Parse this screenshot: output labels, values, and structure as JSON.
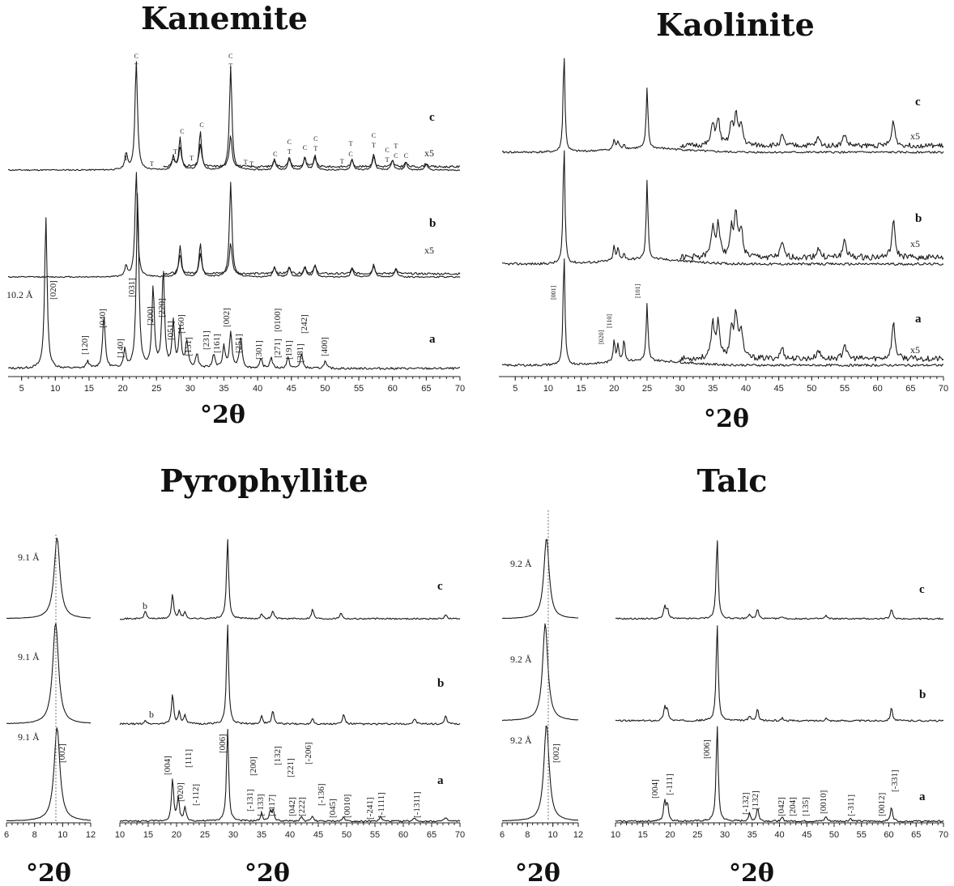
{
  "chart_data": [
    {
      "type": "line",
      "title": "Kanemite",
      "xlabel": "°2θ",
      "xlim": [
        3,
        70
      ],
      "ticks": [
        5,
        10,
        15,
        20,
        25,
        30,
        35,
        40,
        45,
        50,
        55,
        60,
        65,
        70
      ],
      "traces": [
        {
          "name": "c",
          "mult": "x5",
          "peaks": [
            [
              20.5,
              0.15
            ],
            [
              22.0,
              1.0
            ],
            [
              27.5,
              0.12
            ],
            [
              28.5,
              0.3
            ],
            [
              31.5,
              0.35
            ],
            [
              36.0,
              0.95
            ],
            [
              42.5,
              0.1
            ],
            [
              44.7,
              0.12
            ],
            [
              47.0,
              0.12
            ],
            [
              48.5,
              0.14
            ],
            [
              54.0,
              0.1
            ],
            [
              57.2,
              0.15
            ],
            [
              60.0,
              0.09
            ],
            [
              62.0,
              0.07
            ],
            [
              65.0,
              0.06
            ]
          ]
        },
        {
          "name": "b",
          "mult": "x5",
          "peaks": [
            [
              20.5,
              0.1
            ],
            [
              22.0,
              1.0
            ],
            [
              28.5,
              0.3
            ],
            [
              31.5,
              0.32
            ],
            [
              36.0,
              0.9
            ],
            [
              42.5,
              0.1
            ],
            [
              44.7,
              0.1
            ],
            [
              47.0,
              0.1
            ],
            [
              48.5,
              0.12
            ],
            [
              54.0,
              0.08
            ],
            [
              57.2,
              0.12
            ],
            [
              60.5,
              0.08
            ]
          ]
        },
        {
          "name": "a",
          "mult": "",
          "peaks": [
            [
              8.6,
              0.85
            ],
            [
              14.8,
              0.04
            ],
            [
              17.2,
              0.3
            ],
            [
              20.3,
              0.1
            ],
            [
              22.2,
              1.0
            ],
            [
              24.5,
              0.45
            ],
            [
              26.0,
              0.55
            ],
            [
              27.5,
              0.25
            ],
            [
              28.5,
              0.22
            ],
            [
              29.5,
              0.15
            ],
            [
              31.0,
              0.08
            ],
            [
              33.5,
              0.08
            ],
            [
              35.0,
              0.12
            ],
            [
              36.0,
              0.2
            ],
            [
              37.5,
              0.18
            ],
            [
              40.5,
              0.05
            ],
            [
              42.0,
              0.06
            ],
            [
              44.5,
              0.06
            ],
            [
              46.5,
              0.08
            ],
            [
              50.0,
              0.04
            ]
          ]
        }
      ],
      "annotations": {
        "spacing": "10.2  Å",
        "hkl": [
          "[020]",
          "[120]",
          "[040]",
          "[140]",
          "[031]",
          "[200]",
          "[220]",
          "[051]",
          "[160]",
          "[151]",
          "[231]",
          "[161]",
          "[002]",
          "[251]",
          "[301]",
          "[271]",
          "[0100]",
          "[191]",
          "[281]",
          "[242]",
          "[400]"
        ],
        "phase_marks": [
          "C",
          "T"
        ]
      }
    },
    {
      "type": "line",
      "title": "Kaolinite",
      "xlabel": "°2θ",
      "xlim": [
        3,
        70
      ],
      "ticks": [
        5,
        10,
        15,
        20,
        25,
        30,
        35,
        40,
        45,
        50,
        55,
        60,
        65,
        70
      ],
      "traces": [
        {
          "name": "c",
          "mult": "x5",
          "peaks": [
            [
              12.4,
              1.0
            ],
            [
              20.0,
              0.1
            ],
            [
              20.6,
              0.08
            ],
            [
              21.5,
              0.05
            ],
            [
              25.0,
              0.6
            ],
            [
              35.0,
              0.22
            ],
            [
              35.8,
              0.25
            ],
            [
              37.8,
              0.2
            ],
            [
              38.5,
              0.3
            ],
            [
              39.3,
              0.2
            ],
            [
              45.5,
              0.1
            ],
            [
              51.0,
              0.08
            ],
            [
              55.0,
              0.12
            ],
            [
              62.4,
              0.25
            ]
          ]
        },
        {
          "name": "b",
          "mult": "x5",
          "peaks": [
            [
              12.4,
              1.0
            ],
            [
              20.0,
              0.12
            ],
            [
              20.6,
              0.1
            ],
            [
              21.5,
              0.06
            ],
            [
              25.0,
              0.65
            ],
            [
              35.0,
              0.25
            ],
            [
              35.8,
              0.28
            ],
            [
              37.8,
              0.22
            ],
            [
              38.5,
              0.35
            ],
            [
              39.3,
              0.22
            ],
            [
              45.5,
              0.12
            ],
            [
              51.0,
              0.08
            ],
            [
              55.0,
              0.15
            ],
            [
              62.4,
              0.3
            ]
          ]
        },
        {
          "name": "a",
          "mult": "x5",
          "peaks": [
            [
              12.4,
              1.0
            ],
            [
              20.0,
              0.2
            ],
            [
              20.6,
              0.15
            ],
            [
              21.5,
              0.2
            ],
            [
              25.0,
              0.5
            ],
            [
              35.0,
              0.3
            ],
            [
              35.8,
              0.32
            ],
            [
              37.8,
              0.25
            ],
            [
              38.5,
              0.38
            ],
            [
              39.3,
              0.25
            ],
            [
              45.5,
              0.1
            ],
            [
              51.0,
              0.08
            ],
            [
              55.0,
              0.14
            ],
            [
              62.4,
              0.32
            ]
          ]
        }
      ],
      "annotations": {
        "hkl": [
          "[001]",
          "[020]",
          "[110]",
          "[101]"
        ]
      }
    },
    {
      "type": "line",
      "title": "Pyrophyllite",
      "xlabel": "°2θ",
      "xlim_left": [
        6,
        12
      ],
      "xlim_right": [
        10,
        70
      ],
      "ticks_left": [
        6,
        8,
        10,
        12
      ],
      "ticks_right": [
        10,
        15,
        20,
        25,
        30,
        35,
        40,
        45,
        50,
        55,
        60,
        65,
        70
      ],
      "traces": [
        {
          "name": "c",
          "spacing": "9.1 Å",
          "peak_left": 9.6,
          "note": "b",
          "peaks": [
            [
              14.5,
              0.1
            ],
            [
              19.3,
              0.3
            ],
            [
              20.5,
              0.1
            ],
            [
              21.5,
              0.08
            ],
            [
              29.0,
              1.0
            ],
            [
              35.0,
              0.06
            ],
            [
              37.0,
              0.1
            ],
            [
              44.0,
              0.12
            ],
            [
              49.0,
              0.08
            ],
            [
              67.5,
              0.05
            ]
          ]
        },
        {
          "name": "b",
          "spacing": "9.1 Å",
          "peak_left": 9.5,
          "note": "b",
          "peaks": [
            [
              14.5,
              0.04
            ],
            [
              19.3,
              0.3
            ],
            [
              20.5,
              0.12
            ],
            [
              21.5,
              0.08
            ],
            [
              29.0,
              1.0
            ],
            [
              35.0,
              0.08
            ],
            [
              37.0,
              0.14
            ],
            [
              44.0,
              0.06
            ],
            [
              49.5,
              0.1
            ],
            [
              62.0,
              0.06
            ],
            [
              67.5,
              0.08
            ]
          ]
        },
        {
          "name": "a",
          "spacing": "9.1 Å",
          "peak_left": 9.6,
          "note": "",
          "peaks": [
            [
              19.3,
              0.45
            ],
            [
              20.3,
              0.25
            ],
            [
              21.5,
              0.15
            ],
            [
              29.0,
              1.0
            ],
            [
              35.0,
              0.08
            ],
            [
              36.5,
              0.1
            ],
            [
              37.0,
              0.12
            ],
            [
              42.0,
              0.05
            ],
            [
              44.0,
              0.05
            ],
            [
              49.5,
              0.05
            ],
            [
              56.0,
              0.05
            ],
            [
              62.0,
              0.04
            ],
            [
              67.5,
              0.04
            ]
          ]
        }
      ],
      "annotations": {
        "hkl": [
          "[002]",
          "[004]",
          "[020]",
          "[111]",
          "[-112]",
          "[006]",
          "[-131]",
          "[200]",
          "[-133]",
          "[-117]",
          "[132]",
          "[042]",
          "[222]",
          "[221]",
          "[-136]",
          "[-206]",
          "[045]",
          "[0010]",
          "[-241]",
          "[-1111]",
          "[-1311]"
        ]
      }
    },
    {
      "type": "line",
      "title": "Talc",
      "xlabel": "°2θ",
      "xlim_left": [
        6,
        12
      ],
      "xlim_right": [
        10,
        70
      ],
      "ticks_left": [
        6,
        8,
        10,
        12
      ],
      "ticks_right": [
        10,
        15,
        20,
        25,
        30,
        35,
        40,
        45,
        50,
        55,
        60,
        65,
        70
      ],
      "traces": [
        {
          "name": "c",
          "spacing": "9.2 Å",
          "peak_left": 9.5,
          "peaks": [
            [
              19.0,
              0.15
            ],
            [
              19.5,
              0.12
            ],
            [
              28.6,
              1.0
            ],
            [
              34.5,
              0.06
            ],
            [
              36.0,
              0.12
            ],
            [
              40.5,
              0.03
            ],
            [
              48.5,
              0.04
            ],
            [
              60.5,
              0.12
            ]
          ]
        },
        {
          "name": "b",
          "spacing": "9.2 Å",
          "peak_left": 9.4,
          "peaks": [
            [
              19.0,
              0.14
            ],
            [
              19.5,
              0.12
            ],
            [
              28.6,
              1.0
            ],
            [
              34.5,
              0.05
            ],
            [
              36.0,
              0.12
            ],
            [
              40.5,
              0.03
            ],
            [
              48.5,
              0.03
            ],
            [
              60.5,
              0.14
            ]
          ]
        },
        {
          "name": "a",
          "spacing": "9.2 Å",
          "peak_left": 9.5,
          "peaks": [
            [
              19.0,
              0.2
            ],
            [
              19.5,
              0.18
            ],
            [
              28.6,
              1.0
            ],
            [
              34.5,
              0.08
            ],
            [
              36.0,
              0.14
            ],
            [
              40.5,
              0.04
            ],
            [
              48.5,
              0.05
            ],
            [
              53.0,
              0.03
            ],
            [
              60.5,
              0.15
            ]
          ]
        }
      ],
      "annotations": {
        "hkl": [
          "[002]",
          "[004]",
          "[-111]",
          "[006]",
          "[-132]",
          "[132]",
          "[042]",
          "[204]",
          "[135]",
          "[0010]",
          "[-311]",
          "[0012]",
          "[-331]"
        ]
      }
    }
  ]
}
